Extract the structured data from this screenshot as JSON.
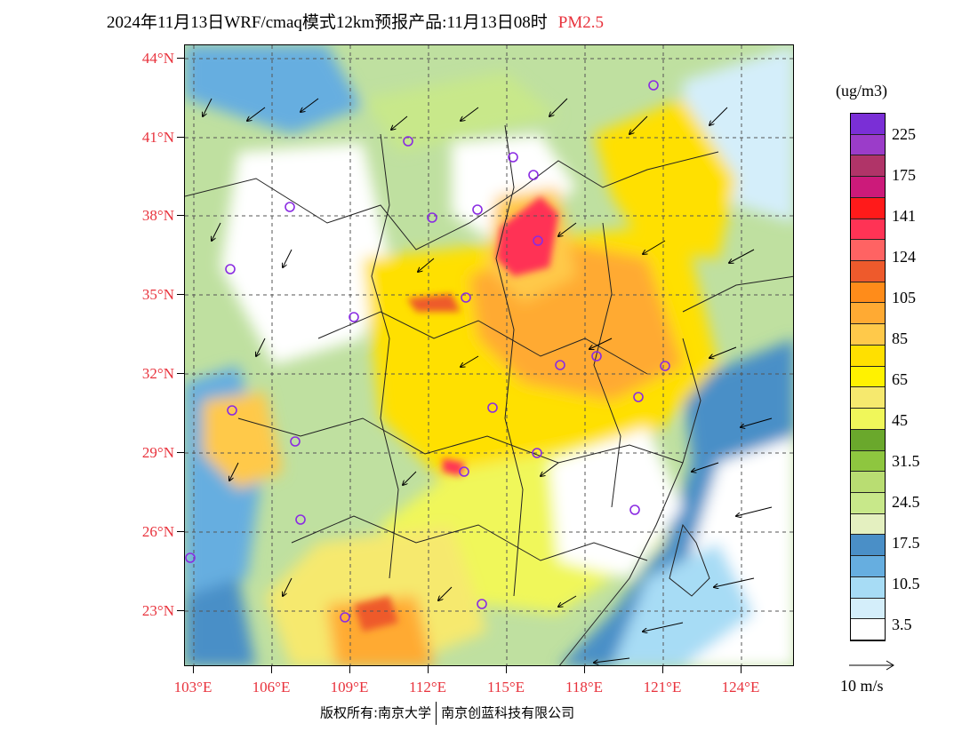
{
  "title": {
    "main": "2024年11月13日WRF/cmaq模式12km预报产品:11月13日08时",
    "variable": "PM2.5"
  },
  "axes": {
    "lat_labels": [
      "44°N",
      "41°N",
      "38°N",
      "35°N",
      "32°N",
      "29°N",
      "26°N",
      "23°N"
    ],
    "lon_labels": [
      "103°E",
      "106°E",
      "109°E",
      "112°E",
      "115°E",
      "118°E",
      "121°E",
      "124°E"
    ]
  },
  "colorbar": {
    "unit": "(ug/m3)",
    "labels": [
      "225",
      "175",
      "141",
      "124",
      "105",
      "85",
      "65",
      "45",
      "31.5",
      "24.5",
      "17.5",
      "10.5",
      "3.5"
    ],
    "colors": [
      "#7a2fd6",
      "#9b3cc9",
      "#b03468",
      "#cc1a7a",
      "#ff1a1a",
      "#ff3355",
      "#ff6363",
      "#ee5a2c",
      "#ff8c1a",
      "#ffaa33",
      "#ffc94a",
      "#ffe000",
      "#fff200",
      "#f6e96e",
      "#f0f75a",
      "#6aa82c",
      "#8ec63f",
      "#b9dd72",
      "#c8e88a",
      "#e4f0c0",
      "#4a8fc7",
      "#66aee0",
      "#a7dcf5",
      "#d4eefa",
      "#ffffff"
    ]
  },
  "wind_ref": {
    "label": "10 m/s"
  },
  "footer": {
    "left": "版权所有:南京大学",
    "right": "南京创蓝科技有限公司"
  }
}
